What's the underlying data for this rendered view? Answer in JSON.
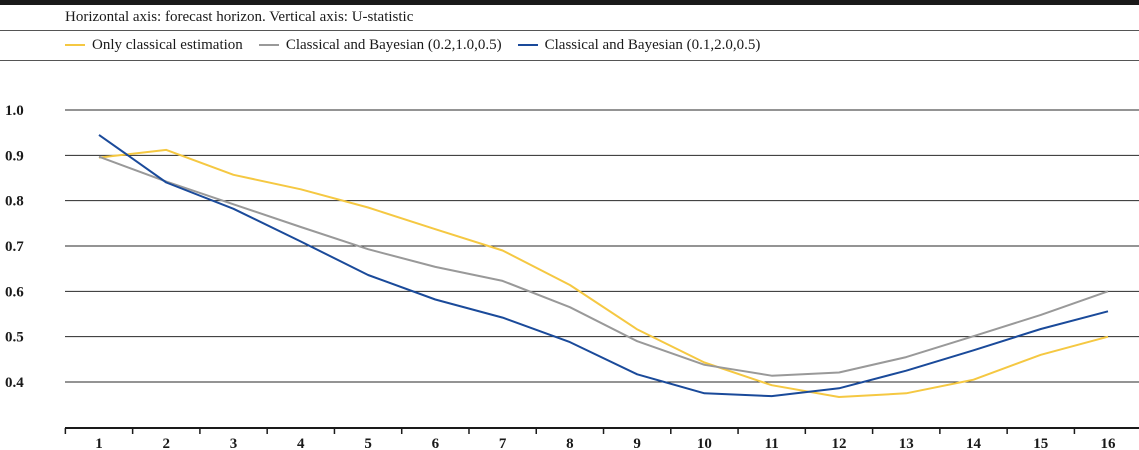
{
  "caption": "Horizontal axis: forecast horizon. Vertical axis: U-statistic",
  "chart_data": {
    "type": "line",
    "x": [
      1,
      2,
      3,
      4,
      5,
      6,
      7,
      8,
      9,
      10,
      11,
      12,
      13,
      14,
      15,
      16
    ],
    "ylim": [
      0.3,
      1.0
    ],
    "yticks": [
      1.0,
      0.9,
      0.8,
      0.7,
      0.6,
      0.5,
      0.4
    ],
    "ytick_labels": [
      "1.0",
      "0.9",
      "0.8",
      "0.7",
      "0.6",
      "0.5",
      "0.4"
    ],
    "xtick_labels": [
      "1",
      "2",
      "3",
      "4",
      "5",
      "6",
      "7",
      "8",
      "9",
      "10",
      "11",
      "12",
      "13",
      "14",
      "15",
      "16"
    ],
    "grid": "horizontal",
    "legend": "top",
    "series": [
      {
        "name": "Only classical estimation",
        "color": "#f5c842",
        "values": [
          0.895,
          0.912,
          0.857,
          0.825,
          0.785,
          0.737,
          0.69,
          0.614,
          0.516,
          0.443,
          0.393,
          0.367,
          0.375,
          0.405,
          0.46,
          0.5
        ]
      },
      {
        "name": "Classical and Bayesian (0.2,1.0,0.5)",
        "color": "#999999",
        "values": [
          0.897,
          0.842,
          0.792,
          0.742,
          0.693,
          0.654,
          0.623,
          0.565,
          0.49,
          0.438,
          0.414,
          0.421,
          0.455,
          0.501,
          0.548,
          0.6
        ]
      },
      {
        "name": "Classical and Bayesian (0.1,2.0,0.5)",
        "color": "#1a4a9a",
        "values": [
          0.945,
          0.84,
          0.782,
          0.71,
          0.636,
          0.582,
          0.542,
          0.488,
          0.417,
          0.375,
          0.369,
          0.386,
          0.425,
          0.47,
          0.517,
          0.556
        ]
      }
    ]
  }
}
